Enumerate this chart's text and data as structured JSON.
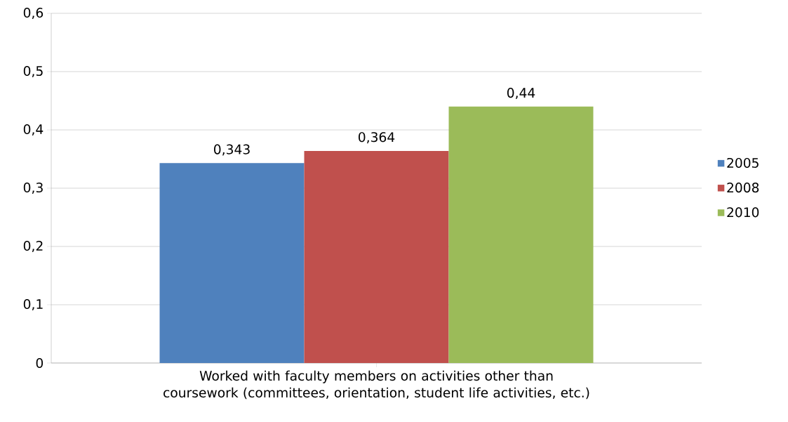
{
  "chart_data": {
    "type": "bar",
    "categories": [
      "Worked with faculty members on activities other than coursework (committees, orientation, student life activities, etc.)"
    ],
    "series": [
      {
        "name": "2005",
        "color": "#4f81bd",
        "values": [
          0.343
        ],
        "value_labels": [
          "0,343"
        ]
      },
      {
        "name": "2008",
        "color": "#c0504d",
        "values": [
          0.364
        ],
        "value_labels": [
          "0,364"
        ]
      },
      {
        "name": "2010",
        "color": "#9bbb59",
        "values": [
          0.44
        ],
        "value_labels": [
          "0,44"
        ]
      }
    ],
    "ylim": [
      0,
      0.6
    ],
    "yticks": [
      0,
      {
        "value": 0.1,
        "label": "0,1"
      },
      {
        "value": 0.2,
        "label": "0,2"
      },
      {
        "value": 0.3,
        "label": "0,3"
      },
      {
        "value": 0.4,
        "label": "0,4"
      },
      {
        "value": 0.5,
        "label": "0,5"
      },
      {
        "value": 0.6,
        "label": "0,6"
      }
    ],
    "grid": "y",
    "legend": "right"
  }
}
